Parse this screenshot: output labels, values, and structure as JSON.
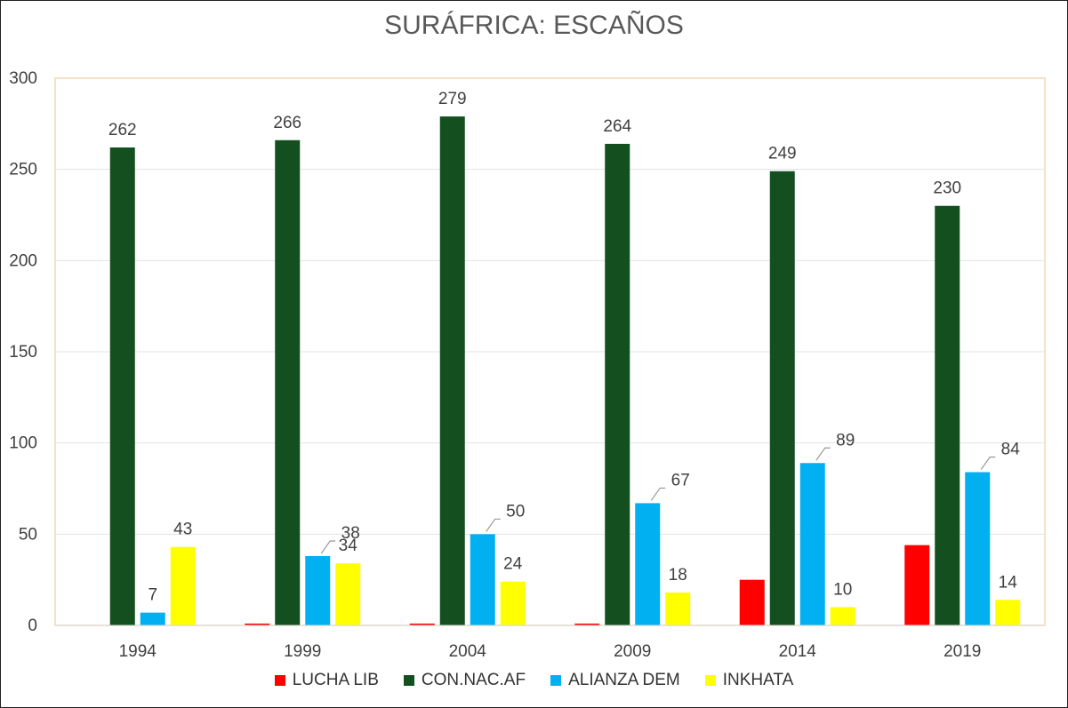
{
  "chart_data": {
    "type": "bar",
    "title": "SURÁFRICA: ESCAÑOS",
    "categories": [
      "1994",
      "1999",
      "2004",
      "2009",
      "2014",
      "2019"
    ],
    "ylim": [
      0,
      300
    ],
    "yticks": [
      0,
      50,
      100,
      150,
      200,
      250,
      300
    ],
    "grid": true,
    "legend_position": "bottom",
    "series": [
      {
        "name": "LUCHA LIB",
        "color": "#ff0000",
        "values": [
          0,
          1,
          1,
          1,
          25,
          44
        ],
        "labels": [
          null,
          null,
          null,
          null,
          null,
          null
        ]
      },
      {
        "name": "CON.NAC.AF",
        "color": "#134f1f",
        "values": [
          262,
          266,
          279,
          264,
          249,
          230
        ],
        "labels": [
          "262",
          "266",
          "279",
          "264",
          "249",
          "230"
        ]
      },
      {
        "name": "ALIANZA DEM",
        "color": "#00b0f0",
        "values": [
          7,
          38,
          50,
          67,
          89,
          84
        ],
        "labels": [
          "7",
          "38",
          "50",
          "67",
          "89",
          "84"
        ]
      },
      {
        "name": "INKHATA",
        "color": "#ffff00",
        "values": [
          43,
          34,
          24,
          18,
          10,
          14
        ],
        "labels": [
          "43",
          "34",
          "24",
          "18",
          "10",
          "14"
        ]
      }
    ]
  }
}
